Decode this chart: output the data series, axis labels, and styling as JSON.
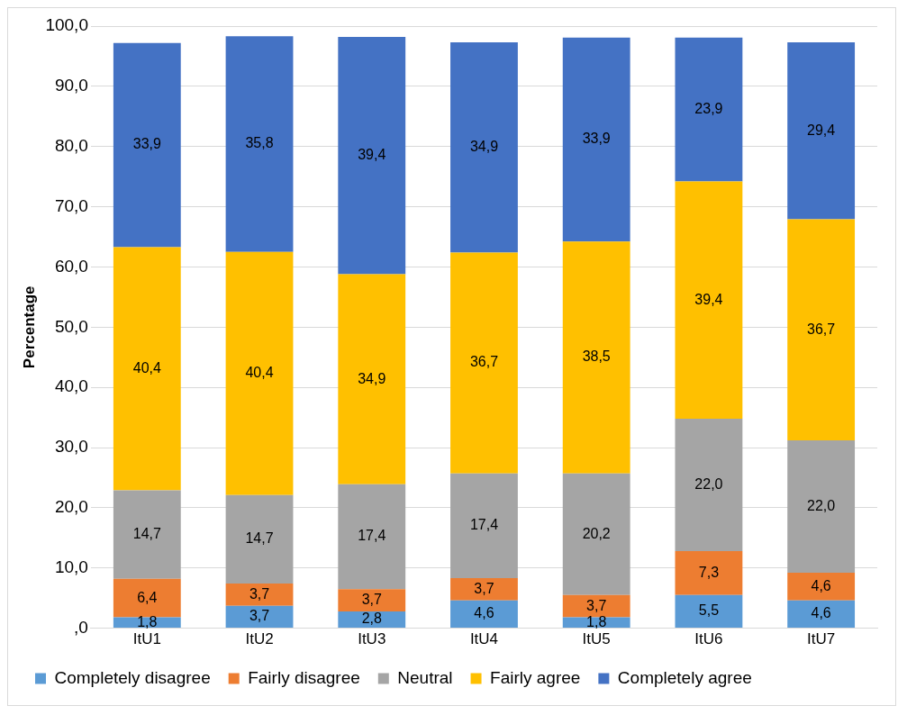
{
  "chart_data": {
    "type": "bar",
    "stacked": true,
    "ylabel": "Percentage",
    "categories": [
      "ItU1",
      "ItU2",
      "ItU3",
      "ItU4",
      "ItU5",
      "ItU6",
      "ItU7"
    ],
    "series": [
      {
        "name": "Completely disagree",
        "color": "#5b9bd5",
        "values": [
          1.8,
          3.7,
          2.8,
          4.6,
          1.8,
          5.5,
          4.6
        ],
        "value_labels": [
          "1,8",
          "3,7",
          "2,8",
          "4,6",
          "1,8",
          "5,5",
          "4,6"
        ]
      },
      {
        "name": "Fairly disagree",
        "color": "#ed7d31",
        "values": [
          6.4,
          3.7,
          3.7,
          3.7,
          3.7,
          7.3,
          4.6
        ],
        "value_labels": [
          "6,4",
          "3,7",
          "3,7",
          "3,7",
          "3,7",
          "7,3",
          "4,6"
        ]
      },
      {
        "name": "Neutral",
        "color": "#a5a5a5",
        "values": [
          14.7,
          14.7,
          17.4,
          17.4,
          20.2,
          22.0,
          22.0
        ],
        "value_labels": [
          "14,7",
          "14,7",
          "17,4",
          "17,4",
          "20,2",
          "22,0",
          "22,0"
        ]
      },
      {
        "name": "Fairly agree",
        "color": "#ffc000",
        "values": [
          40.4,
          40.4,
          34.9,
          36.7,
          38.5,
          39.4,
          36.7
        ],
        "value_labels": [
          "40,4",
          "40,4",
          "34,9",
          "36,7",
          "38,5",
          "39,4",
          "36,7"
        ]
      },
      {
        "name": "Completely agree",
        "color": "#4472c4",
        "values": [
          33.9,
          35.8,
          39.4,
          34.9,
          33.9,
          23.9,
          29.4
        ],
        "value_labels": [
          "33,9",
          "35,8",
          "39,4",
          "34,9",
          "33,9",
          "23,9",
          "29,4"
        ]
      }
    ],
    "ylim": [
      0,
      100
    ],
    "yticks": [
      {
        "value": 0,
        "label": ",0"
      },
      {
        "value": 10,
        "label": "10,0"
      },
      {
        "value": 20,
        "label": "20,0"
      },
      {
        "value": 30,
        "label": "30,0"
      },
      {
        "value": 40,
        "label": "40,0"
      },
      {
        "value": 50,
        "label": "50,0"
      },
      {
        "value": 60,
        "label": "60,0"
      },
      {
        "value": 70,
        "label": "70,0"
      },
      {
        "value": 80,
        "label": "80,0"
      },
      {
        "value": 90,
        "label": "90,0"
      },
      {
        "value": 100,
        "label": "100,0"
      }
    ],
    "grid": "y",
    "legend": "bottom"
  }
}
